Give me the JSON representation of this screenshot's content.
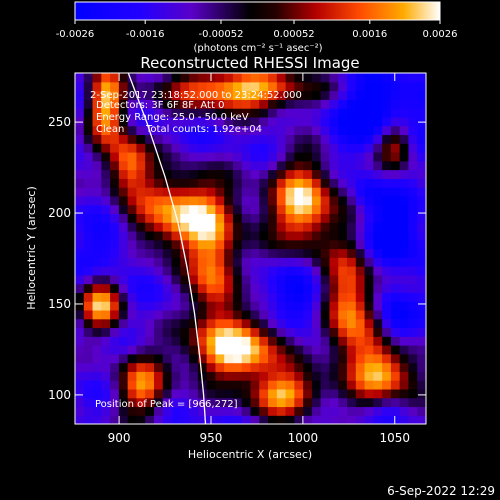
{
  "chart_data": {
    "type": "heatmap",
    "title": "Reconstructed RHESSI Image",
    "xlabel": "Heliocentric X (arcsec)",
    "ylabel": "Heliocentric Y (arcsec)",
    "xlim": [
      876,
      1067
    ],
    "ylim": [
      84,
      277
    ],
    "xticks": [
      900,
      950,
      1000,
      1050
    ],
    "yticks": [
      100,
      150,
      200,
      250
    ],
    "colorbar": {
      "range": [
        -0.0026,
        0.0026
      ],
      "tick_values": [
        -0.0026,
        -0.0016,
        -0.00052,
        0.00052,
        0.0016,
        0.0026
      ],
      "tick_labels": [
        "-0.0026",
        "-0.0016",
        "-0.00052",
        "0.00052",
        "0.0016",
        "0.0026"
      ],
      "unit_label": "(photons cm⁻² s⁻¹ asec⁻²)"
    },
    "annotations": {
      "time": "2-Sep-2017 23:18:52.000 to 23:24:52.000",
      "detectors": "Detectors: 3F 6F 8F, Att 0",
      "energy": "Energy Range: 25.0 - 50.0 keV",
      "method": "Clean",
      "counts": "Total counts: 1.92e+04",
      "peak": "Position of Peak = [966,272]"
    },
    "peak": [
      966,
      272
    ],
    "limb_curve": [
      [
        905,
        277
      ],
      [
        915,
        250
      ],
      [
        925,
        220
      ],
      [
        932,
        195
      ],
      [
        937,
        170
      ],
      [
        941,
        145
      ],
      [
        944,
        120
      ],
      [
        946,
        100
      ],
      [
        947,
        84
      ]
    ],
    "hot_regions": [
      {
        "x": 893,
        "y": 260,
        "level": 0.8,
        "rx": 10,
        "ry": 22
      },
      {
        "x": 905,
        "y": 228,
        "level": 0.65,
        "rx": 12,
        "ry": 16
      },
      {
        "x": 965,
        "y": 268,
        "level": 0.95,
        "rx": 40,
        "ry": 12
      },
      {
        "x": 935,
        "y": 200,
        "level": 0.9,
        "rx": 28,
        "ry": 22
      },
      {
        "x": 952,
        "y": 165,
        "level": 0.6,
        "rx": 14,
        "ry": 28
      },
      {
        "x": 1000,
        "y": 205,
        "level": 0.95,
        "rx": 18,
        "ry": 25
      },
      {
        "x": 1025,
        "y": 150,
        "level": 0.8,
        "rx": 14,
        "ry": 32
      },
      {
        "x": 965,
        "y": 125,
        "level": 0.95,
        "rx": 28,
        "ry": 18
      },
      {
        "x": 1045,
        "y": 112,
        "level": 0.85,
        "rx": 18,
        "ry": 20
      },
      {
        "x": 890,
        "y": 150,
        "level": 0.75,
        "rx": 12,
        "ry": 15
      },
      {
        "x": 912,
        "y": 105,
        "level": 0.6,
        "rx": 14,
        "ry": 18
      },
      {
        "x": 990,
        "y": 100,
        "level": 0.75,
        "rx": 20,
        "ry": 12
      },
      {
        "x": 1050,
        "y": 238,
        "level": 0.55,
        "rx": 10,
        "ry": 14
      }
    ],
    "cold_regions": [
      {
        "x": 1040,
        "y": 255,
        "level": -0.95,
        "rx": 22,
        "ry": 20
      },
      {
        "x": 1000,
        "y": 150,
        "level": -0.7,
        "rx": 15,
        "ry": 20
      },
      {
        "x": 1050,
        "y": 190,
        "level": -0.9,
        "rx": 14,
        "ry": 18
      },
      {
        "x": 1050,
        "y": 140,
        "level": -0.8,
        "rx": 10,
        "ry": 18
      },
      {
        "x": 1048,
        "y": 95,
        "level": -0.6,
        "rx": 12,
        "ry": 10
      },
      {
        "x": 895,
        "y": 180,
        "level": -0.6,
        "rx": 14,
        "ry": 18
      },
      {
        "x": 970,
        "y": 155,
        "level": -0.4,
        "rx": 10,
        "ry": 12
      },
      {
        "x": 1035,
        "y": 210,
        "level": -0.55,
        "rx": 8,
        "ry": 10
      }
    ]
  },
  "footer": {
    "timestamp": "6-Sep-2022 12:29"
  }
}
